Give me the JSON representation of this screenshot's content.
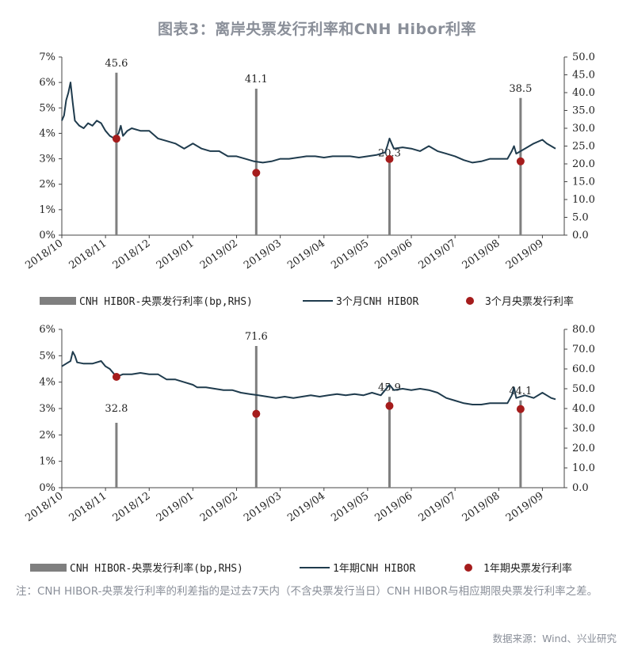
{
  "title": "图表3：离岸央票发行利率和CNH Hibor利率",
  "chart_data": [
    {
      "type": "line",
      "y_left": {
        "min": 0,
        "max": 7,
        "ticks": [
          "0%",
          "1%",
          "2%",
          "3%",
          "4%",
          "5%",
          "6%",
          "7%"
        ]
      },
      "y_right": {
        "min": 0,
        "max": 50,
        "ticks": [
          "0.0",
          "5.0",
          "10.0",
          "15.0",
          "20.0",
          "25.0",
          "30.0",
          "35.0",
          "40.0",
          "45.0",
          "50.0"
        ]
      },
      "x_ticks": [
        "2018/10",
        "2018/11",
        "2018/12",
        "2019/01",
        "2019/02",
        "2019/03",
        "2019/04",
        "2019/05",
        "2019/06",
        "2019/07",
        "2019/08",
        "2019/09"
      ],
      "line_series": {
        "name": "3个月CNH HIBOR",
        "color": "#1f3b4d",
        "points": [
          [
            0,
            4.5
          ],
          [
            0.05,
            4.7
          ],
          [
            0.1,
            5.3
          ],
          [
            0.15,
            5.6
          ],
          [
            0.2,
            6.0
          ],
          [
            0.25,
            5.2
          ],
          [
            0.3,
            4.5
          ],
          [
            0.4,
            4.3
          ],
          [
            0.5,
            4.2
          ],
          [
            0.6,
            4.4
          ],
          [
            0.7,
            4.3
          ],
          [
            0.8,
            4.5
          ],
          [
            0.9,
            4.4
          ],
          [
            1.0,
            4.1
          ],
          [
            1.1,
            3.9
          ],
          [
            1.2,
            3.8
          ],
          [
            1.3,
            4.0
          ],
          [
            1.35,
            4.3
          ],
          [
            1.4,
            3.9
          ],
          [
            1.5,
            4.1
          ],
          [
            1.6,
            4.2
          ],
          [
            1.8,
            4.1
          ],
          [
            2.0,
            4.1
          ],
          [
            2.2,
            3.8
          ],
          [
            2.4,
            3.7
          ],
          [
            2.6,
            3.6
          ],
          [
            2.8,
            3.4
          ],
          [
            3.0,
            3.6
          ],
          [
            3.2,
            3.4
          ],
          [
            3.4,
            3.3
          ],
          [
            3.6,
            3.3
          ],
          [
            3.8,
            3.1
          ],
          [
            4.0,
            3.1
          ],
          [
            4.2,
            3.0
          ],
          [
            4.4,
            2.9
          ],
          [
            4.6,
            2.85
          ],
          [
            4.8,
            2.9
          ],
          [
            5.0,
            3.0
          ],
          [
            5.2,
            3.0
          ],
          [
            5.4,
            3.05
          ],
          [
            5.6,
            3.1
          ],
          [
            5.8,
            3.1
          ],
          [
            6.0,
            3.05
          ],
          [
            6.2,
            3.1
          ],
          [
            6.4,
            3.1
          ],
          [
            6.6,
            3.1
          ],
          [
            6.8,
            3.05
          ],
          [
            7.0,
            3.1
          ],
          [
            7.2,
            3.15
          ],
          [
            7.4,
            3.25
          ],
          [
            7.45,
            3.5
          ],
          [
            7.5,
            3.8
          ],
          [
            7.55,
            3.6
          ],
          [
            7.6,
            3.4
          ],
          [
            7.8,
            3.45
          ],
          [
            8.0,
            3.4
          ],
          [
            8.2,
            3.3
          ],
          [
            8.4,
            3.5
          ],
          [
            8.6,
            3.3
          ],
          [
            8.8,
            3.2
          ],
          [
            9.0,
            3.1
          ],
          [
            9.2,
            2.95
          ],
          [
            9.4,
            2.85
          ],
          [
            9.6,
            2.9
          ],
          [
            9.8,
            3.0
          ],
          [
            10.0,
            3.0
          ],
          [
            10.2,
            3.0
          ],
          [
            10.3,
            3.3
          ],
          [
            10.35,
            3.5
          ],
          [
            10.4,
            3.2
          ],
          [
            10.6,
            3.4
          ],
          [
            10.8,
            3.6
          ],
          [
            11.0,
            3.75
          ],
          [
            11.1,
            3.6
          ],
          [
            11.2,
            3.5
          ],
          [
            11.3,
            3.4
          ]
        ]
      },
      "bar_series": {
        "name": "CNH HIBOR-央票发行利率(bp,RHS)",
        "color": "#7f7f7f",
        "bars": [
          {
            "x": 1.25,
            "value": 45.6
          },
          {
            "x": 4.45,
            "value": 41.1
          },
          {
            "x": 7.5,
            "value": 20.3
          },
          {
            "x": 10.5,
            "value": 38.5
          }
        ]
      },
      "dot_series": {
        "name": "3个月央票发行利率",
        "color": "#a51c1c",
        "points": [
          {
            "x": 1.25,
            "y": 3.79
          },
          {
            "x": 4.45,
            "y": 2.45
          },
          {
            "x": 7.5,
            "y": 2.99
          },
          {
            "x": 10.5,
            "y": 2.9
          }
        ]
      },
      "legend": {
        "bar_label": "CNH HIBOR-央票发行利率(bp,RHS)",
        "line_label": "3个月CNH HIBOR",
        "dot_label": "3个月央票发行利率"
      }
    },
    {
      "type": "line",
      "y_left": {
        "min": 0,
        "max": 6,
        "ticks": [
          "0%",
          "1%",
          "2%",
          "3%",
          "4%",
          "5%",
          "6%"
        ]
      },
      "y_right": {
        "min": 0,
        "max": 80,
        "ticks": [
          "0.0",
          "10.0",
          "20.0",
          "30.0",
          "40.0",
          "50.0",
          "60.0",
          "70.0",
          "80.0"
        ]
      },
      "x_ticks": [
        "2018/10",
        "2018/11",
        "2018/12",
        "2019/01",
        "2019/02",
        "2019/03",
        "2019/04",
        "2019/05",
        "2019/06",
        "2019/07",
        "2019/08",
        "2019/09"
      ],
      "line_series": {
        "name": "1年期CNH HIBOR",
        "color": "#1f3b4d",
        "points": [
          [
            0,
            4.6
          ],
          [
            0.1,
            4.7
          ],
          [
            0.2,
            4.8
          ],
          [
            0.25,
            5.15
          ],
          [
            0.3,
            5.0
          ],
          [
            0.35,
            4.75
          ],
          [
            0.5,
            4.7
          ],
          [
            0.7,
            4.7
          ],
          [
            0.9,
            4.8
          ],
          [
            1.0,
            4.6
          ],
          [
            1.1,
            4.5
          ],
          [
            1.2,
            4.3
          ],
          [
            1.25,
            4.2
          ],
          [
            1.4,
            4.3
          ],
          [
            1.6,
            4.3
          ],
          [
            1.8,
            4.35
          ],
          [
            2.0,
            4.3
          ],
          [
            2.2,
            4.3
          ],
          [
            2.4,
            4.1
          ],
          [
            2.6,
            4.1
          ],
          [
            2.8,
            4.0
          ],
          [
            3.0,
            3.9
          ],
          [
            3.1,
            3.8
          ],
          [
            3.3,
            3.8
          ],
          [
            3.5,
            3.75
          ],
          [
            3.7,
            3.7
          ],
          [
            3.9,
            3.7
          ],
          [
            4.1,
            3.6
          ],
          [
            4.3,
            3.55
          ],
          [
            4.5,
            3.5
          ],
          [
            4.7,
            3.45
          ],
          [
            4.9,
            3.4
          ],
          [
            5.1,
            3.45
          ],
          [
            5.3,
            3.4
          ],
          [
            5.5,
            3.45
          ],
          [
            5.7,
            3.5
          ],
          [
            5.9,
            3.45
          ],
          [
            6.1,
            3.5
          ],
          [
            6.3,
            3.55
          ],
          [
            6.5,
            3.5
          ],
          [
            6.7,
            3.55
          ],
          [
            6.9,
            3.5
          ],
          [
            7.1,
            3.6
          ],
          [
            7.3,
            3.5
          ],
          [
            7.4,
            3.7
          ],
          [
            7.5,
            3.9
          ],
          [
            7.6,
            3.7
          ],
          [
            7.8,
            3.75
          ],
          [
            8.0,
            3.7
          ],
          [
            8.2,
            3.75
          ],
          [
            8.4,
            3.7
          ],
          [
            8.6,
            3.6
          ],
          [
            8.8,
            3.4
          ],
          [
            9.0,
            3.3
          ],
          [
            9.2,
            3.2
          ],
          [
            9.4,
            3.15
          ],
          [
            9.6,
            3.15
          ],
          [
            9.8,
            3.2
          ],
          [
            10.0,
            3.2
          ],
          [
            10.2,
            3.2
          ],
          [
            10.3,
            3.5
          ],
          [
            10.35,
            3.8
          ],
          [
            10.4,
            3.4
          ],
          [
            10.6,
            3.5
          ],
          [
            10.8,
            3.4
          ],
          [
            11.0,
            3.6
          ],
          [
            11.1,
            3.5
          ],
          [
            11.2,
            3.4
          ],
          [
            11.3,
            3.35
          ]
        ]
      },
      "bar_series": {
        "name": "CNH HIBOR-央票发行利率(bp,RHS)",
        "color": "#7f7f7f",
        "bars": [
          {
            "x": 1.25,
            "value": 32.8
          },
          {
            "x": 4.45,
            "value": 71.6
          },
          {
            "x": 7.5,
            "value": 45.9
          },
          {
            "x": 10.5,
            "value": 44.1
          }
        ]
      },
      "dot_series": {
        "name": "1年期央票发行利率",
        "color": "#a51c1c",
        "points": [
          {
            "x": 1.25,
            "y": 4.2
          },
          {
            "x": 4.45,
            "y": 2.8
          },
          {
            "x": 7.5,
            "y": 3.1
          },
          {
            "x": 10.5,
            "y": 2.98
          }
        ]
      },
      "legend": {
        "bar_label": "CNH HIBOR-央票发行利率(bp,RHS)",
        "line_label": "1年期CNH HIBOR",
        "dot_label": "1年期央票发行利率"
      }
    }
  ],
  "note": "注：CNH HIBOR-央票发行利率的利差指的是过去7天内（不含央票发行当日）CNH HIBOR与相应期限央票发行利率之差。",
  "source": "数据来源：Wind、兴业研究"
}
